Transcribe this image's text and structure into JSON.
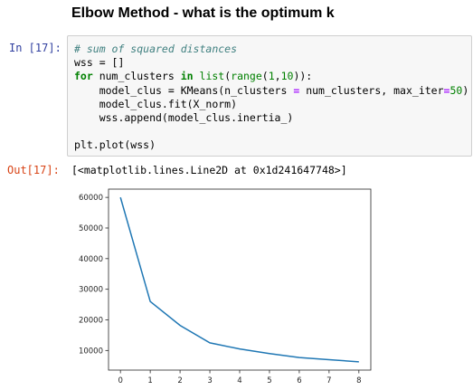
{
  "heading": "Elbow Method - what is the optimum k",
  "cell": {
    "in_prompt": "In [17]:",
    "out_prompt": "Out[17]:",
    "code": {
      "line1": "# sum of squared distances",
      "line2_pre": "wss = []",
      "line3_kw1": "for",
      "line3_mid1": " num_clusters ",
      "line3_kw2": "in",
      "line3_bi1": "list",
      "line3_p1": "(",
      "line3_bi2": "range",
      "line3_p2": "(",
      "line3_n1": "1",
      "line3_p3": ",",
      "line3_n2": "10",
      "line3_p4": ")):",
      "line4_a": "    model_clus = KMeans(n_clusters ",
      "line4_eq1": "=",
      "line4_b": " num_clusters, max_iter",
      "line4_eq2": "=",
      "line4_n": "50",
      "line4_c": ")",
      "line5": "    model_clus.fit(X_norm)",
      "line6": "    wss.append(model_clus.inertia_)",
      "line8": "plt.plot(wss)"
    },
    "output_repr": "[<matplotlib.lines.Line2D at 0x1d241647748>]"
  },
  "chart_data": {
    "type": "line",
    "x": [
      0,
      1,
      2,
      3,
      4,
      5,
      6,
      7,
      8
    ],
    "series": [
      {
        "values": [
          60000,
          26000,
          18200,
          12500,
          10500,
          9000,
          7700,
          7000,
          6300
        ],
        "color": "#1f77b4"
      }
    ],
    "xlim": [
      -0.4,
      8.4
    ],
    "ylim": [
      3600,
      62700
    ],
    "x_ticks": [
      0,
      1,
      2,
      3,
      4,
      5,
      6,
      7,
      8
    ],
    "y_ticks": [
      10000,
      20000,
      30000,
      40000,
      50000,
      60000
    ],
    "x_tick_labels": [
      "0",
      "1",
      "2",
      "3",
      "4",
      "5",
      "6",
      "7",
      "8"
    ],
    "y_tick_labels": [
      "10000",
      "20000",
      "30000",
      "40000",
      "50000",
      "60000"
    ],
    "grid": false
  }
}
